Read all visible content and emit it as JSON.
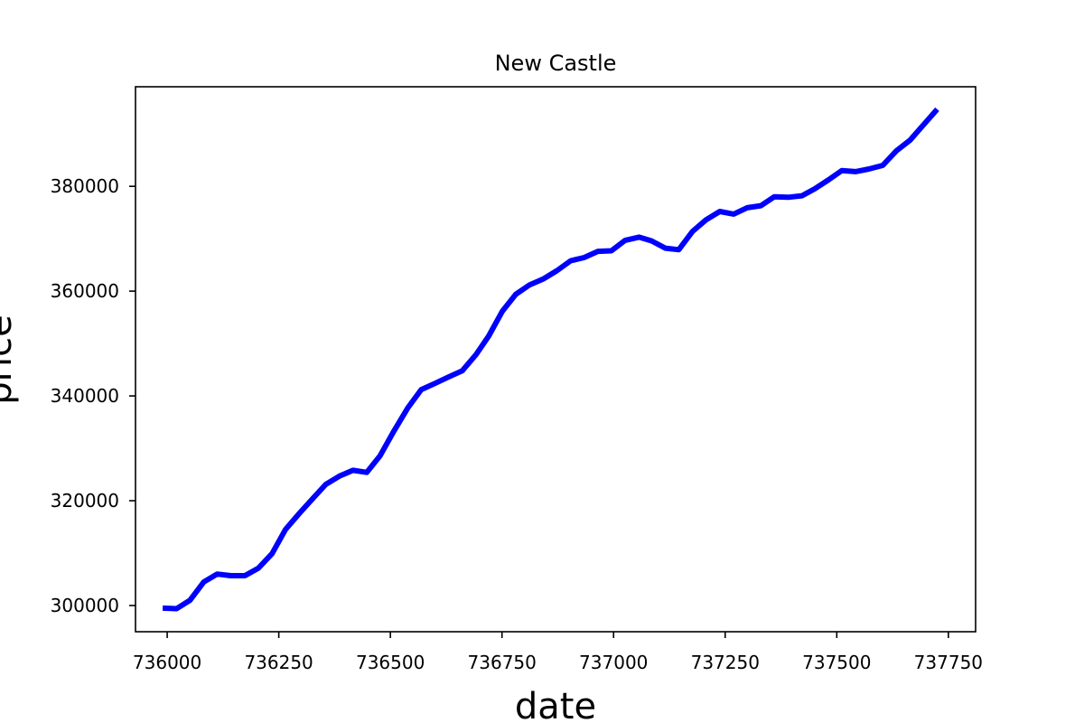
{
  "chart_data": {
    "type": "line",
    "title": "New Castle",
    "xlabel": "date",
    "ylabel": "price",
    "xlim": [
      735929,
      737811
    ],
    "ylim": [
      295000,
      399000
    ],
    "xticks": [
      736000,
      736250,
      736500,
      736750,
      737000,
      737250,
      737500,
      737750
    ],
    "yticks": [
      300000,
      320000,
      340000,
      360000,
      380000
    ],
    "grid": false,
    "legend": "none",
    "series": [
      {
        "color": "#0000ff",
        "x": [
          735990,
          736021,
          736051,
          736082,
          736112,
          736143,
          736174,
          736204,
          736235,
          736265,
          736296,
          736327,
          736355,
          736386,
          736416,
          736447,
          736477,
          736508,
          736539,
          736569,
          736600,
          736630,
          736661,
          736692,
          736720,
          736751,
          736781,
          736812,
          736842,
          736873,
          736904,
          736934,
          736965,
          736995,
          737026,
          737057,
          737085,
          737116,
          737146,
          737177,
          737207,
          737238,
          737269,
          737299,
          737330,
          737360,
          737391,
          737422,
          737450,
          737481,
          737511,
          737542,
          737572,
          737603,
          737634,
          737664,
          737695,
          737725
        ],
        "y": [
          299500,
          299400,
          301000,
          304500,
          306000,
          305700,
          305700,
          307100,
          309900,
          314500,
          317600,
          320500,
          323100,
          324700,
          325800,
          325400,
          328600,
          333300,
          337700,
          341200,
          342400,
          343600,
          344800,
          347900,
          351400,
          356200,
          359400,
          361200,
          362300,
          363900,
          365800,
          366400,
          367600,
          367700,
          369700,
          370300,
          369600,
          368200,
          367900,
          371400,
          373600,
          375200,
          374700,
          375900,
          376300,
          378000,
          377900,
          378200,
          379500,
          381200,
          383000,
          382800,
          383300,
          384000,
          386800,
          388800,
          391800,
          394700
        ]
      }
    ]
  }
}
